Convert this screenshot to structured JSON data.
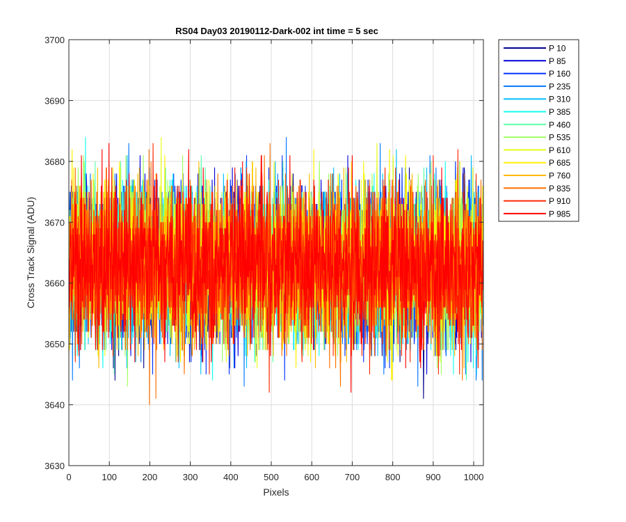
{
  "chart_data": {
    "type": "line",
    "title": "RS04 Day03 20190112-Dark-002 int time = 5 sec",
    "xlabel": "Pixels",
    "ylabel": "Cross Track Signal (ADU)",
    "xlim": [
      0,
      1024
    ],
    "ylim": [
      3630,
      3700
    ],
    "xticks": [
      0,
      100,
      200,
      300,
      400,
      500,
      600,
      700,
      800,
      900,
      1000
    ],
    "yticks": [
      3630,
      3640,
      3650,
      3660,
      3670,
      3680,
      3690,
      3700
    ],
    "grid": true,
    "legend_position": "outside-top-right",
    "series": [
      {
        "name": "P 10",
        "color": "#00008F",
        "mean": 3663,
        "noise_sd": 6.5,
        "n_points": 1024
      },
      {
        "name": "P 85",
        "color": "#0000DB",
        "mean": 3663,
        "noise_sd": 6.5,
        "n_points": 1024
      },
      {
        "name": "P 160",
        "color": "#0030FF",
        "mean": 3663,
        "noise_sd": 6.5,
        "n_points": 1024
      },
      {
        "name": "P 235",
        "color": "#0078FF",
        "mean": 3663,
        "noise_sd": 6.5,
        "n_points": 1024
      },
      {
        "name": "P 310",
        "color": "#00C0FF",
        "mean": 3663,
        "noise_sd": 6.5,
        "n_points": 1024
      },
      {
        "name": "P 385",
        "color": "#10FFEF",
        "mean": 3663,
        "noise_sd": 6.5,
        "n_points": 1024
      },
      {
        "name": "P 460",
        "color": "#58FFA7",
        "mean": 3663,
        "noise_sd": 6.5,
        "n_points": 1024
      },
      {
        "name": "P 535",
        "color": "#A0FF5F",
        "mean": 3663,
        "noise_sd": 6.5,
        "n_points": 1024
      },
      {
        "name": "P 610",
        "color": "#E8FF17",
        "mean": 3663,
        "noise_sd": 6.5,
        "n_points": 1024
      },
      {
        "name": "P 685",
        "color": "#FFF000",
        "mean": 3663,
        "noise_sd": 6.5,
        "n_points": 1024
      },
      {
        "name": "P 760",
        "color": "#FFB800",
        "mean": 3663,
        "noise_sd": 6.5,
        "n_points": 1024
      },
      {
        "name": "P 835",
        "color": "#FF7000",
        "mean": 3663,
        "noise_sd": 6.5,
        "n_points": 1024
      },
      {
        "name": "P 910",
        "color": "#FF2800",
        "mean": 3663,
        "noise_sd": 6.5,
        "n_points": 1024
      },
      {
        "name": "P 985",
        "color": "#FF0000",
        "mean": 3663,
        "noise_sd": 6.5,
        "n_points": 1024
      }
    ]
  }
}
